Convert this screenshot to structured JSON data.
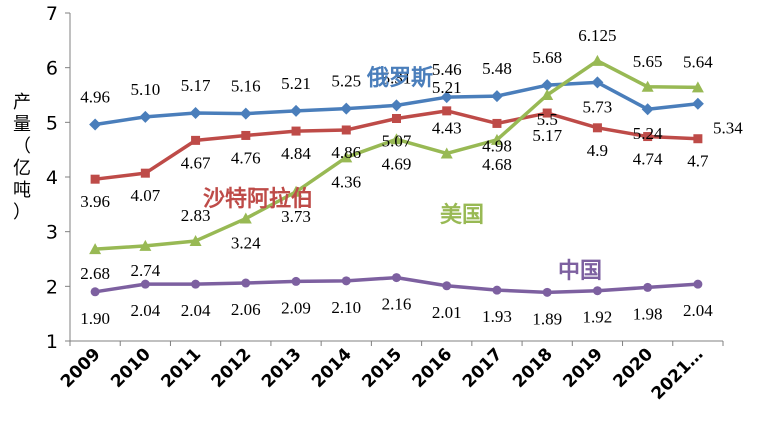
{
  "chart_data": {
    "type": "line",
    "ylabel": "产量（亿吨）",
    "ylim": [
      1,
      7
    ],
    "yticks": [
      1,
      2,
      3,
      4,
      5,
      6,
      7
    ],
    "categories": [
      "2009",
      "2010",
      "2011",
      "2012",
      "2013",
      "2014",
      "2015",
      "2016",
      "2017",
      "2018",
      "2019",
      "2020",
      "2021…"
    ],
    "grid": false,
    "series": [
      {
        "name": "俄罗斯",
        "color": "#4a7ebb",
        "marker": "diamond",
        "values": [
          4.96,
          5.1,
          5.17,
          5.16,
          5.21,
          5.25,
          5.31,
          5.46,
          5.48,
          5.68,
          5.73,
          5.24,
          5.34
        ],
        "labels": [
          "4.96",
          "5.10",
          "5.17",
          "5.16",
          "5.21",
          "5.25",
          "5.31",
          "5.46",
          "5.48",
          "5.68",
          "5.73",
          "5.24",
          "5.34"
        ]
      },
      {
        "name": "沙特阿拉伯",
        "color": "#be4b48",
        "marker": "square",
        "values": [
          3.96,
          4.07,
          4.67,
          4.76,
          4.84,
          4.86,
          5.07,
          5.21,
          4.98,
          5.17,
          4.9,
          4.74,
          4.7
        ],
        "labels": [
          "3.96",
          "4.07",
          "4.67",
          "4.76",
          "4.84",
          "4.86",
          "5.07",
          "5.21",
          "4.98",
          "5.17",
          "4.9",
          "4.74",
          "4.7"
        ]
      },
      {
        "name": "美国",
        "color": "#98b954",
        "marker": "triangle",
        "values": [
          2.68,
          2.74,
          2.83,
          3.24,
          3.73,
          4.36,
          4.69,
          4.43,
          4.68,
          5.5,
          6.125,
          5.65,
          5.64
        ],
        "labels": [
          "2.68",
          "2.74",
          "2.83",
          "3.24",
          "3.73",
          "4.36",
          "4.69",
          "4.43",
          "4.68",
          "5.5",
          "6.125",
          "5.65",
          "5.64"
        ]
      },
      {
        "name": "中国",
        "color": "#7d60a0",
        "marker": "circle",
        "values": [
          1.9,
          2.04,
          2.04,
          2.06,
          2.09,
          2.1,
          2.16,
          2.01,
          1.93,
          1.89,
          1.92,
          1.98,
          2.04
        ],
        "labels": [
          "1.90",
          "2.04",
          "2.04",
          "2.06",
          "2.09",
          "2.10",
          "2.16",
          "2.01",
          "1.93",
          "1.89",
          "1.92",
          "1.98",
          "2.04"
        ]
      }
    ]
  }
}
